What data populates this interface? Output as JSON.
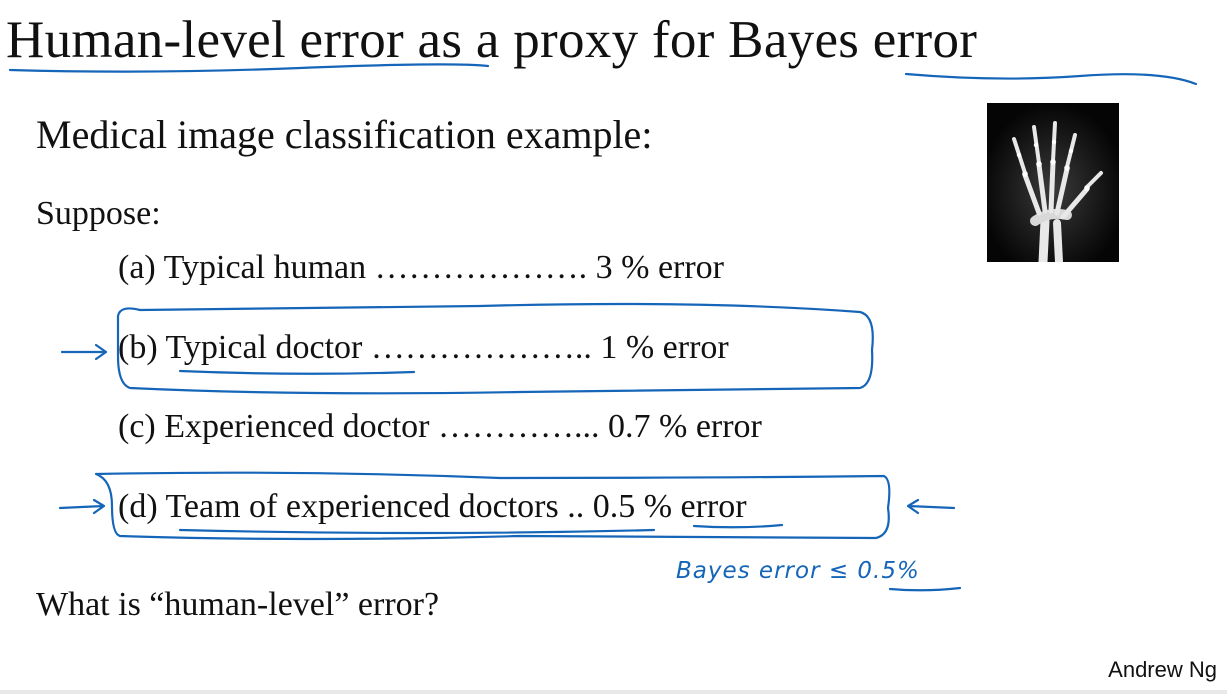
{
  "slide": {
    "title": "Human-level error as a proxy for Bayes error",
    "subtitle": "Medical image classification example:",
    "suppose_label": "Suppose:",
    "options": [
      {
        "text": "(a) Typical human ………………. 3 % error"
      },
      {
        "text": "(b) Typical doctor ……………….. 1 % error"
      },
      {
        "text": "(c) Experienced doctor …………... 0.7 % error"
      },
      {
        "text": "(d) Team of experienced doctors .. 0.5 % error"
      }
    ],
    "question": "What is “human-level” error?",
    "author": "Andrew Ng"
  },
  "handwriting": {
    "bayes_note": "Bayes error ≤ 0.5%",
    "ink_color": "#1565b8"
  },
  "image": {
    "icon": "hand-xray-icon"
  }
}
